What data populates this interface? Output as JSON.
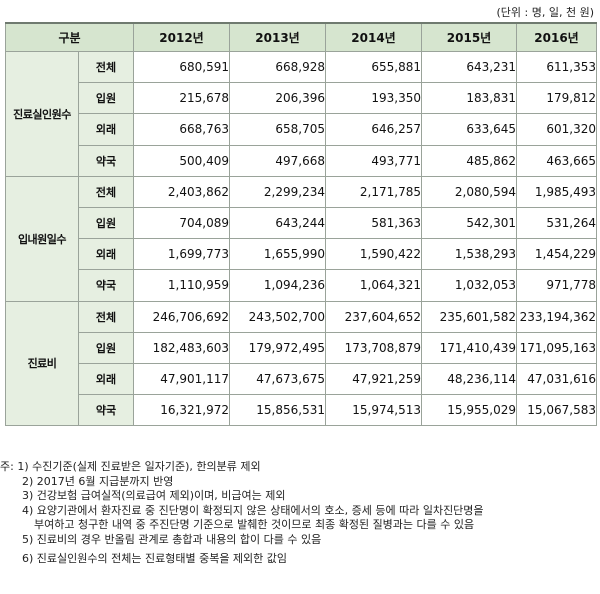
{
  "unit_label": "(단위 : 명, 일, 천 원)",
  "header": {
    "category_label": "구분",
    "years": [
      "2012년",
      "2013년",
      "2014년",
      "2015년",
      "2016년"
    ]
  },
  "groups": [
    {
      "label": "진료실인원수",
      "rows": [
        {
          "sub": "전체",
          "values": [
            "680,591",
            "668,928",
            "655,881",
            "643,231",
            "611,353"
          ]
        },
        {
          "sub": "입원",
          "values": [
            "215,678",
            "206,396",
            "193,350",
            "183,831",
            "179,812"
          ]
        },
        {
          "sub": "외래",
          "values": [
            "668,763",
            "658,705",
            "646,257",
            "633,645",
            "601,320"
          ]
        },
        {
          "sub": "약국",
          "values": [
            "500,409",
            "497,668",
            "493,771",
            "485,862",
            "463,665"
          ]
        }
      ]
    },
    {
      "label": "입내원일수",
      "rows": [
        {
          "sub": "전체",
          "values": [
            "2,403,862",
            "2,299,234",
            "2,171,785",
            "2,080,594",
            "1,985,493"
          ]
        },
        {
          "sub": "입원",
          "values": [
            "704,089",
            "643,244",
            "581,363",
            "542,301",
            "531,264"
          ]
        },
        {
          "sub": "외래",
          "values": [
            "1,699,773",
            "1,655,990",
            "1,590,422",
            "1,538,293",
            "1,454,229"
          ]
        },
        {
          "sub": "약국",
          "values": [
            "1,110,959",
            "1,094,236",
            "1,064,321",
            "1,032,053",
            "971,778"
          ]
        }
      ]
    },
    {
      "label": "진료비",
      "rows": [
        {
          "sub": "전체",
          "values": [
            "246,706,692",
            "243,502,700",
            "237,604,652",
            "235,601,582",
            "233,194,362"
          ]
        },
        {
          "sub": "입원",
          "values": [
            "182,483,603",
            "179,972,495",
            "173,708,879",
            "171,410,439",
            "171,095,163"
          ]
        },
        {
          "sub": "외래",
          "values": [
            "47,901,117",
            "47,673,675",
            "47,921,259",
            "48,236,114",
            "47,031,616"
          ]
        },
        {
          "sub": "약국",
          "values": [
            "16,321,972",
            "15,856,531",
            "15,974,513",
            "15,955,029",
            "15,067,583"
          ]
        }
      ]
    }
  ],
  "notes": [
    "주: 1) 수진기준(실제 진료받은 일자기준), 한의분류 제외",
    "2) 2017년 6월 지급분까지 반영",
    "3) 건강보험 급여실적(의료급여 제외)이며, 비급여는 제외",
    "4) 요양기관에서 환자진료 중 진단명이 확정되지 않은 상태에서의 호소, 증세 등에 따라 일차진단명을",
    "부여하고 청구한 내역 중 주진단명 기준으로 발췌한 것이므로 최종 확정된 질병과는 다를 수 있음",
    "5) 진료비의 경우 반올림 관계로 총합과 내용의 합이 다를 수 있음",
    "6) 진료실인원수의 전체는 진료형태별 중복을 제외한 값임"
  ]
}
